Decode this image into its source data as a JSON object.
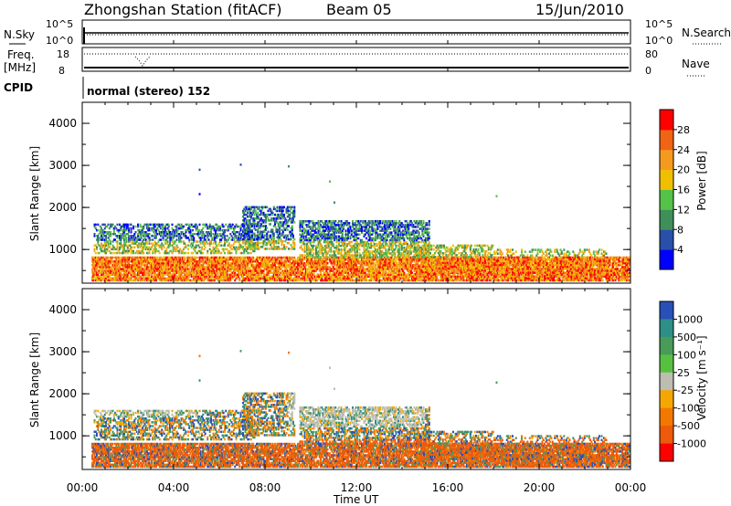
{
  "header": {
    "title": "Zhongshan Station (fitACF)",
    "beam": "Beam 05",
    "date": "15/Jun/2010"
  },
  "panels": {
    "nsky_label": "N.Sky",
    "nsearch_label": "N.Search",
    "nsky_top_tick": "10^5",
    "nsky_bottom_tick": "10^0",
    "freq_label": "Freq.",
    "freq_unit": "[MHz]",
    "freq_top_tick": "18",
    "freq_bottom_tick": "8",
    "nave_label": "Nave",
    "nave_top_tick": "80",
    "nave_bottom_tick": "0",
    "cpid_label": "CPID",
    "cpid_value": "normal (stereo) 152"
  },
  "colors": {
    "power": [
      "#0000ff",
      "#2a4fa8",
      "#3f8f5a",
      "#55c24a",
      "#f0c000",
      "#f59a1e",
      "#f06414",
      "#ff0000"
    ],
    "velocity": [
      "#2850b8",
      "#2e8f88",
      "#4a9a5a",
      "#58c040",
      "#bdbdb2",
      "#f4a700",
      "#f47800",
      "#ee5a0a",
      "#ff0000"
    ],
    "ground_scatter": "#bdbdb2"
  },
  "chart_data": [
    {
      "type": "heatmap",
      "name": "power",
      "ylabel": "Slant Range [km]",
      "yticks": [
        "1000",
        "2000",
        "3000",
        "4000"
      ],
      "ylim": [
        200,
        4500
      ],
      "xlim": [
        0,
        24
      ],
      "colorbar_label": "Power [dB]",
      "colorbar_ticks": [
        "4",
        "8",
        "12",
        "16",
        "20",
        "24",
        "28"
      ],
      "colorbar_range": [
        0,
        32
      ]
    },
    {
      "type": "heatmap",
      "name": "velocity",
      "ylabel": "Slant Range [km]",
      "yticks": [
        "1000",
        "2000",
        "3000",
        "4000"
      ],
      "ylim": [
        200,
        4500
      ],
      "xlim": [
        0,
        24
      ],
      "colorbar_label": "Velocity [m s⁻¹]",
      "colorbar_ticks": [
        "1000",
        "500",
        "100",
        "25",
        "-25",
        "-100",
        "-500",
        "-1000"
      ]
    }
  ],
  "xaxis": {
    "label": "Time UT",
    "ticks": [
      "00:00",
      "04:00",
      "08:00",
      "12:00",
      "16:00",
      "20:00",
      "00:00"
    ]
  }
}
